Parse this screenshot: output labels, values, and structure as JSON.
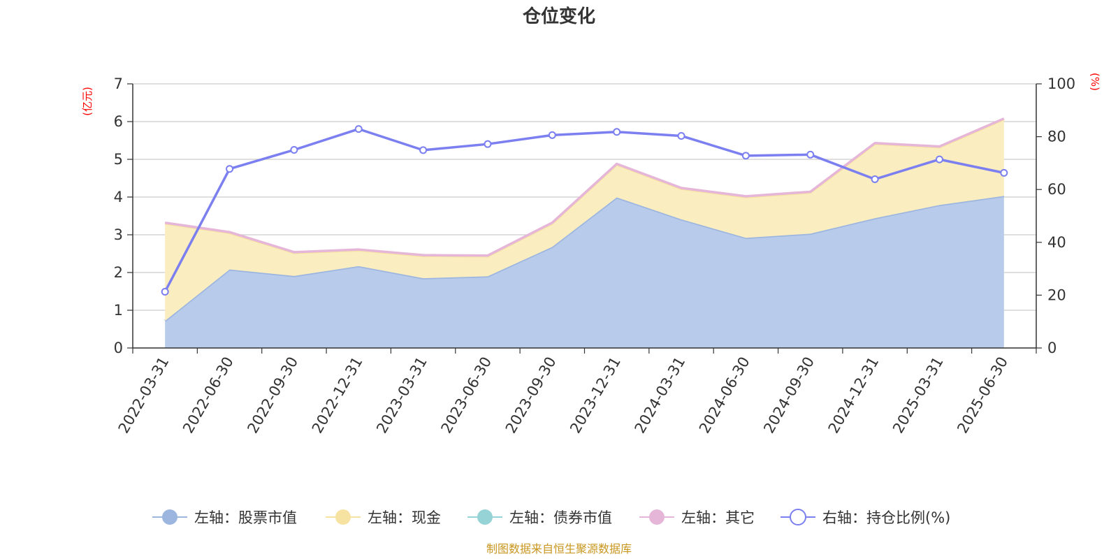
{
  "chart_data": {
    "type": "area",
    "title": "仓位变化",
    "left_axis_unit": "(亿元)",
    "right_axis_unit": "(%)",
    "categories": [
      "2022-03-31",
      "2022-06-30",
      "2022-09-30",
      "2022-12-31",
      "2023-03-31",
      "2023-06-30",
      "2023-09-30",
      "2023-12-31",
      "2024-03-31",
      "2024-06-30",
      "2024-09-30",
      "2024-12-31",
      "2025-03-31",
      "2025-06-30"
    ],
    "left_ylim": [
      0,
      7
    ],
    "left_ticks": [
      "0",
      "1",
      "2",
      "3",
      "4",
      "5",
      "6",
      "7"
    ],
    "right_ylim": [
      0,
      100
    ],
    "right_ticks": [
      "0",
      "20",
      "40",
      "60",
      "80",
      "100"
    ],
    "grid": true,
    "legend_position": "bottom",
    "series": [
      {
        "name": "左轴：股票市值",
        "axis": "left",
        "kind": "area",
        "color": "#9db6e0",
        "fill": "#b8cbea",
        "values": [
          0.72,
          2.08,
          1.91,
          2.17,
          1.85,
          1.9,
          2.68,
          3.99,
          3.41,
          2.92,
          3.03,
          3.44,
          3.79,
          4.03
        ]
      },
      {
        "name": "左轴：现金",
        "axis": "left",
        "kind": "area",
        "color": "#f6e3a1",
        "fill": "#faedc0",
        "values": [
          2.58,
          0.97,
          0.61,
          0.42,
          0.59,
          0.53,
          0.62,
          0.87,
          0.81,
          1.08,
          1.09,
          1.97,
          1.53,
          2.03
        ]
      },
      {
        "name": "左轴：债券市值",
        "axis": "left",
        "kind": "area",
        "color": "#96d3d6",
        "fill": "#b6e2e4",
        "values": [
          0,
          0,
          0,
          0,
          0,
          0,
          0,
          0,
          0,
          0,
          0,
          0,
          0,
          0
        ]
      },
      {
        "name": "左轴：其它",
        "axis": "left",
        "kind": "area",
        "color": "#e6b6d8",
        "fill": "#efcde5",
        "values": [
          0.02,
          0.02,
          0.02,
          0.02,
          0.02,
          0.02,
          0.02,
          0.02,
          0.02,
          0.02,
          0.02,
          0.02,
          0.02,
          0.02
        ]
      },
      {
        "name": "右轴：持仓比例(%)",
        "axis": "right",
        "kind": "line",
        "color": "#7b7ff0",
        "values": [
          21.3,
          67.8,
          75.0,
          82.9,
          74.9,
          77.2,
          80.6,
          81.8,
          80.3,
          72.8,
          73.2,
          63.9,
          71.4,
          66.3
        ]
      }
    ]
  },
  "footer": {
    "source": "制图数据来自恒生聚源数据库"
  }
}
